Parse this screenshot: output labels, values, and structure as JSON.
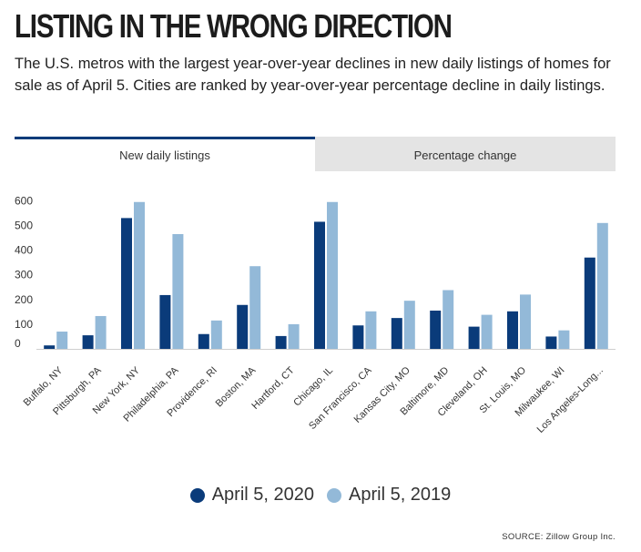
{
  "title": "LISTING IN THE WRONG  DIRECTION",
  "subtitle": "The U.S. metros with the largest year-over-year declines in new daily listings of homes for sale as of April 5. Cities are ranked by year-over-year percentage decline in daily listings.",
  "tabs": [
    {
      "label": "New daily listings",
      "active": true
    },
    {
      "label": "Percentage change",
      "active": false
    }
  ],
  "colors": {
    "series_2020": "#0a3b7a",
    "series_2019": "#93b9d8",
    "tab_underline": "#0a3b7a",
    "tab_inactive_bg": "#e4e4e4"
  },
  "chart_data": {
    "type": "bar",
    "categories": [
      "Buffalo, NY",
      "Pittsburgh, PA",
      "New York, NY",
      "Philadelphia, PA",
      "Providence, RI",
      "Boston, MA",
      "Hartford, CT",
      "Chicago, IL",
      "San Francisco, CA",
      "Kansas City, MO",
      "Baltimore, MD",
      "Cleveland, OH",
      "St. Louis, MO",
      "Milwaukee, WI",
      "Los Angeles-Long..."
    ],
    "series": [
      {
        "name": "April 5, 2020",
        "values": [
          14,
          55,
          530,
          218,
          60,
          178,
          52,
          515,
          95,
          125,
          155,
          90,
          152,
          50,
          370
        ]
      },
      {
        "name": "April 5, 2019",
        "values": [
          70,
          133,
          595,
          465,
          115,
          335,
          100,
          595,
          152,
          195,
          238,
          138,
          220,
          75,
          510
        ]
      }
    ],
    "yticks": [
      0,
      100,
      200,
      300,
      400,
      500,
      600
    ],
    "ylim": [
      0,
      620
    ],
    "grid": false,
    "legend_position": "bottom"
  },
  "source": "SOURCE: Zillow Group Inc."
}
